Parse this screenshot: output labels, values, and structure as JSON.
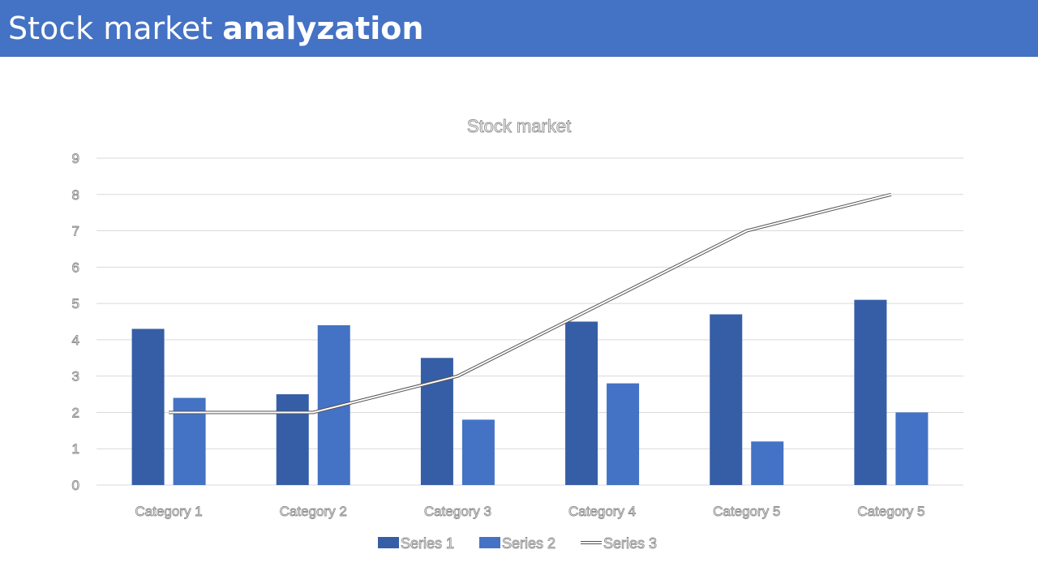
{
  "header": {
    "title_regular": "Stock market ",
    "title_bold": "analyzation"
  },
  "colors": {
    "banner": "#4472C4",
    "series_1": "#365EA6",
    "series_2": "#4472C4",
    "series_3": "#ffffff",
    "gridline": "#d9d9d9"
  },
  "chart_data": {
    "type": "bar",
    "title": "Stock market",
    "xlabel": "",
    "ylabel": "",
    "ylim": [
      0,
      9
    ],
    "yticks": [
      "0",
      "1",
      "2",
      "3",
      "4",
      "5",
      "6",
      "7",
      "8",
      "9"
    ],
    "grid": true,
    "legend_position": "bottom",
    "categories": [
      "Category 1",
      "Category 2",
      "Category 3",
      "Category 4",
      "Category 5",
      "Category 5"
    ],
    "series": [
      {
        "name": "Series 1",
        "type": "bar",
        "values": [
          4.3,
          2.5,
          3.5,
          4.5,
          4.7,
          5.1
        ]
      },
      {
        "name": "Series 2",
        "type": "bar",
        "values": [
          2.4,
          4.4,
          1.8,
          2.8,
          1.2,
          2.0
        ]
      },
      {
        "name": "Series 3",
        "type": "line",
        "values": [
          2,
          2,
          3,
          5,
          7,
          8
        ]
      }
    ]
  }
}
